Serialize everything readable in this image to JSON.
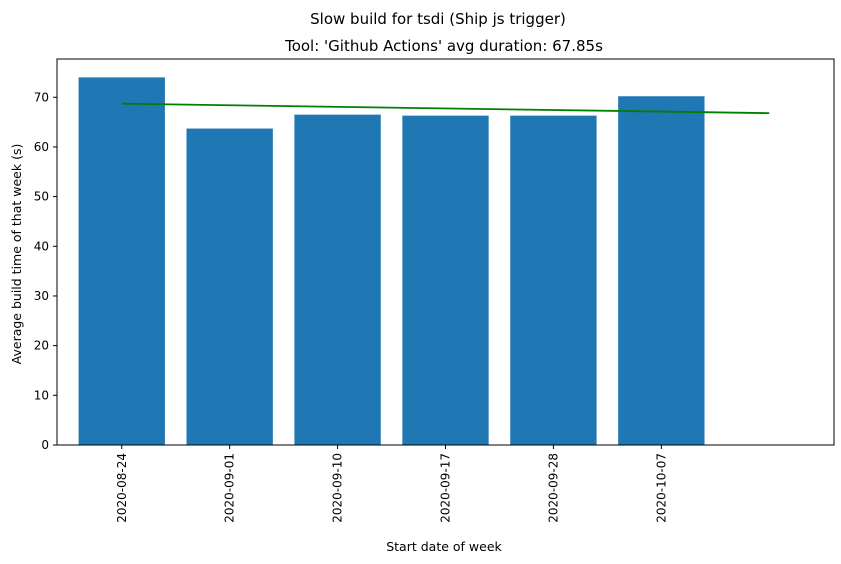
{
  "chart_data": {
    "type": "bar",
    "suptitle": "Slow build for tsdi (Ship js trigger)",
    "title": "Tool: 'Github Actions' avg duration: 67.85s",
    "xlabel": "Start date of week",
    "ylabel": "Average build time of that week (s)",
    "categories": [
      "2020-08-24",
      "2020-09-01",
      "2020-09-10",
      "2020-09-17",
      "2020-09-28",
      "2020-10-07"
    ],
    "values": [
      74.0,
      63.7,
      66.5,
      66.3,
      66.3,
      70.2
    ],
    "bar_color": "#1f77b4",
    "trend": {
      "color": "#008000",
      "start": 68.7,
      "end": 66.8
    },
    "ylim": [
      0,
      77.7
    ],
    "yticks": [
      0,
      10,
      20,
      30,
      40,
      50,
      60,
      70
    ],
    "grid": false,
    "legend": "none"
  }
}
